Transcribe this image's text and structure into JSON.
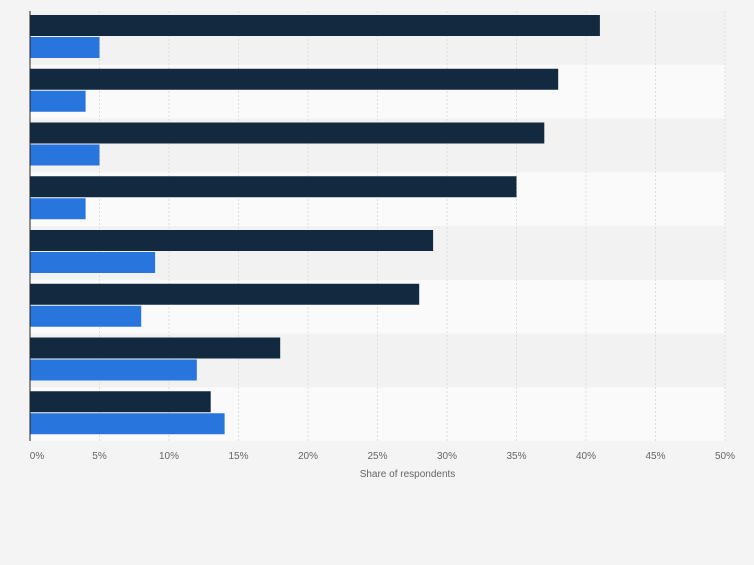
{
  "chart_data": {
    "type": "bar",
    "orientation": "horizontal",
    "xlabel": "Share of respondents",
    "xlim": [
      0,
      50
    ],
    "x_ticks": [
      "0%",
      "5%",
      "10%",
      "15%",
      "20%",
      "25%",
      "30%",
      "35%",
      "40%",
      "45%",
      "50%"
    ],
    "grid": true,
    "legend": "none",
    "categories": [
      "",
      "",
      "",
      "",
      "",
      "",
      "",
      ""
    ],
    "series": [
      {
        "color": "#13293f",
        "values": [
          41,
          38,
          37,
          35,
          29,
          28,
          18,
          13
        ]
      },
      {
        "color": "#2876dd",
        "values": [
          5,
          4,
          5,
          4,
          9,
          8,
          12,
          14
        ]
      }
    ]
  }
}
